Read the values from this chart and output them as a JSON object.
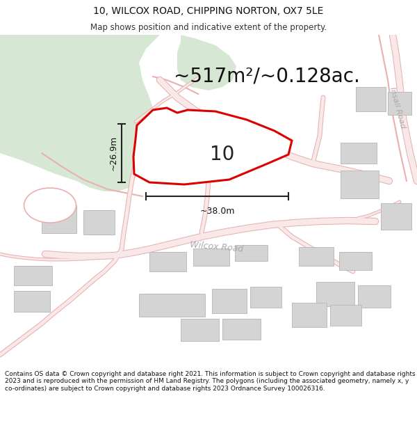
{
  "title": "10, WILCOX ROAD, CHIPPING NORTON, OX7 5LE",
  "subtitle": "Map shows position and indicative extent of the property.",
  "area_label": "~517m²/~0.128ac.",
  "property_number": "10",
  "dim_height": "~26.9m",
  "dim_width": "~38.0m",
  "road_label": "Wilcox Road",
  "insall_road_label": "Insall Road",
  "footer": "Contains OS data © Crown copyright and database right 2021. This information is subject to Crown copyright and database rights 2023 and is reproduced with the permission of HM Land Registry. The polygons (including the associated geometry, namely x, y co-ordinates) are subject to Crown copyright and database rights 2023 Ordnance Survey 100026316.",
  "map_bg": "#f5f5f0",
  "green_color": "#d6e8d4",
  "road_line_color": "#e8b0b0",
  "road_fill_color": "#f8e8e8",
  "building_color": "#d4d4d4",
  "building_edge": "#bbbbbb",
  "property_fill": "#ffffff",
  "property_edge": "#dd0000",
  "dim_line_color": "#222222",
  "text_dark": "#111111",
  "text_gray": "#aaaaaa",
  "footer_fontsize": 6.5,
  "title_fontsize": 10,
  "subtitle_fontsize": 8.5,
  "area_fontsize": 20,
  "number_fontsize": 20,
  "dim_fontsize": 9,
  "road_label_fontsize": 9,
  "insall_fontsize": 8
}
